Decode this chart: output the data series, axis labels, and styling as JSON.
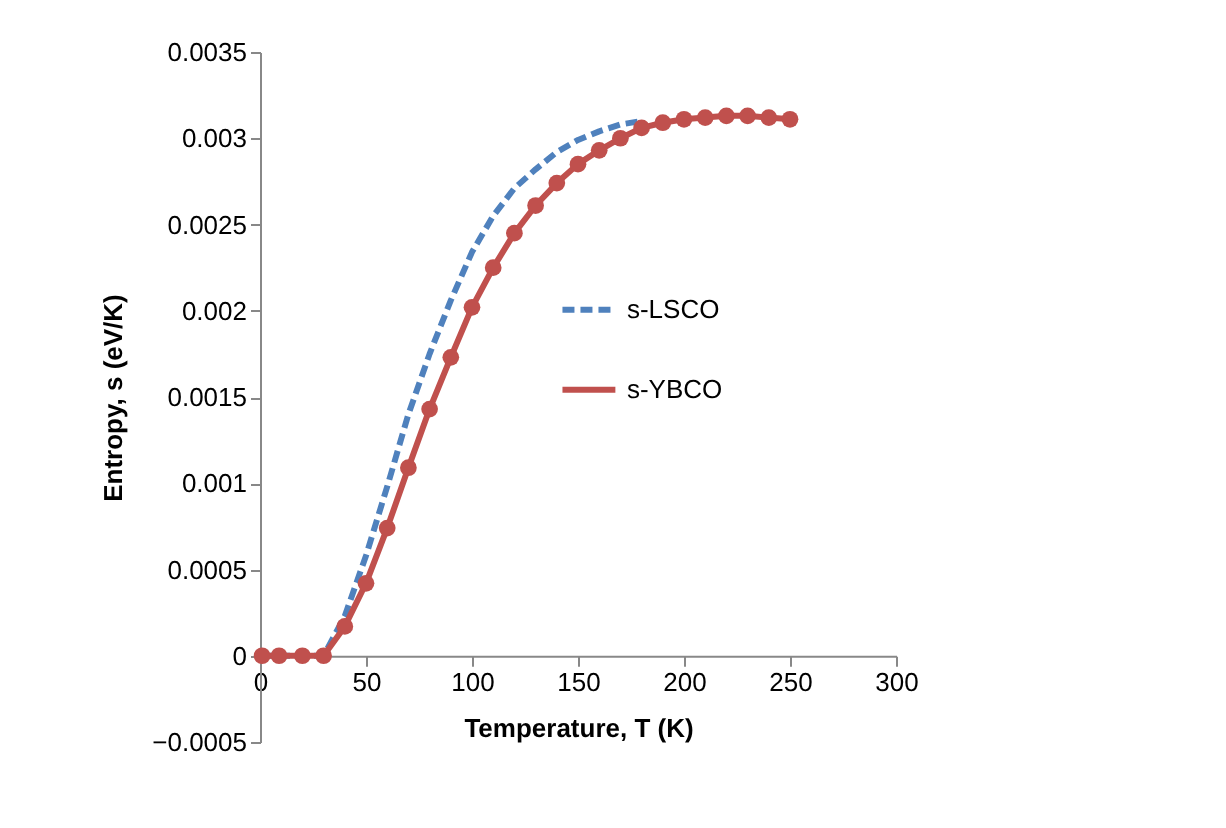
{
  "chart_data": {
    "type": "line",
    "xlabel": "Temperature, T (K)",
    "ylabel": "Entropy, s (eV/K)",
    "xlim": [
      0,
      300
    ],
    "xticks": [
      0,
      50,
      100,
      150,
      200,
      250,
      300
    ],
    "ylim": [
      -0.0005,
      0.0035
    ],
    "yticks": [
      -0.0005,
      0,
      0.0005,
      0.001,
      0.0015,
      0.002,
      0.0025,
      0.003,
      0.0035
    ],
    "grid": false,
    "legend": "right",
    "series": [
      {
        "name": "s-LSCO",
        "color": "#4f81bd",
        "line_style": "dashed",
        "marker": "none",
        "x": [
          0,
          10,
          20,
          30,
          40,
          50,
          60,
          70,
          80,
          90,
          100,
          110,
          120,
          130,
          140,
          150,
          160,
          170,
          180
        ],
        "values": [
          0,
          0,
          0,
          0,
          0.00023,
          0.00058,
          0.00098,
          0.0014,
          0.00175,
          0.00206,
          0.00234,
          0.00255,
          0.00271,
          0.00282,
          0.00292,
          0.00299,
          0.00304,
          0.00308,
          0.0031
        ]
      },
      {
        "name": "s-YBCO",
        "color": "#c0504d",
        "line_style": "solid",
        "marker": "circle",
        "x": [
          1,
          9,
          20,
          30,
          40,
          50,
          60,
          70,
          80,
          90,
          100,
          110,
          120,
          130,
          140,
          150,
          160,
          170,
          180,
          190,
          200,
          210,
          220,
          230,
          240,
          250
        ],
        "values": [
          0,
          0,
          0,
          0,
          0.00017,
          0.00042,
          0.00074,
          0.00109,
          0.00143,
          0.00173,
          0.00202,
          0.00225,
          0.00245,
          0.00261,
          0.00274,
          0.00285,
          0.00293,
          0.003,
          0.00306,
          0.00309,
          0.00311,
          0.00312,
          0.00313,
          0.00313,
          0.00312,
          0.00311
        ]
      }
    ]
  }
}
